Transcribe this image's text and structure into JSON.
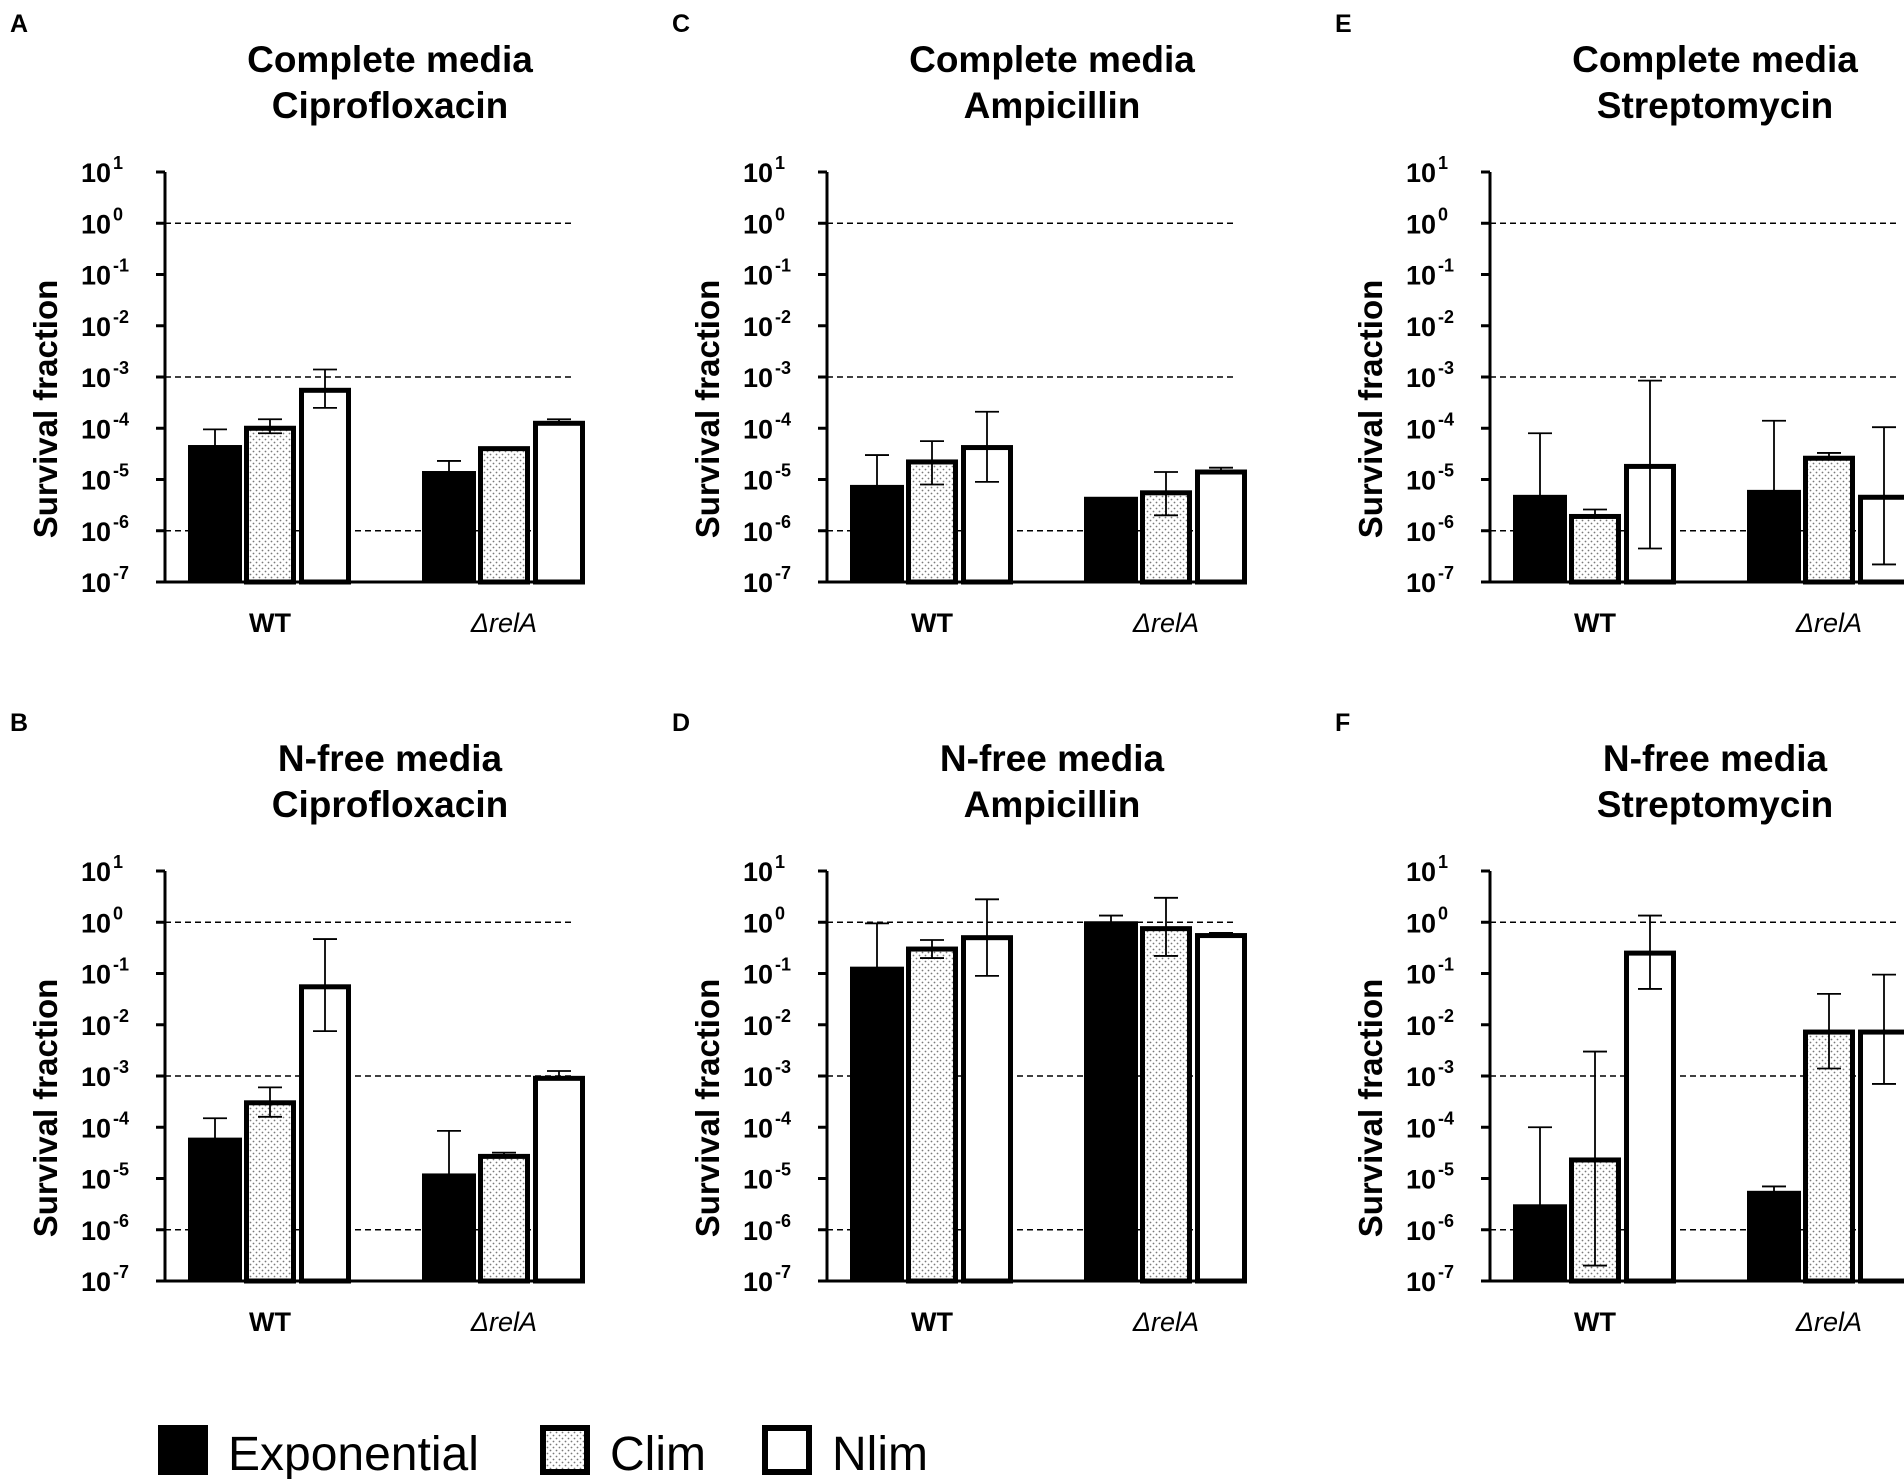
{
  "legend": [
    {
      "key": "exponential",
      "label": "Exponential",
      "style": "solid"
    },
    {
      "key": "clim",
      "label": "Clim",
      "style": "dotted"
    },
    {
      "key": "nlim",
      "label": "Nlim",
      "style": "open"
    }
  ],
  "colors": {
    "black": "#000000",
    "white": "#ffffff",
    "dots": "#7a7a7a"
  },
  "chart_data": [
    {
      "type": "bar",
      "panel": "A",
      "title_lines": [
        "Complete media",
        "Ciprofloxacin"
      ],
      "ylabel": "Survival fraction",
      "yscale": "log",
      "ylim_exp": [
        -7,
        1
      ],
      "yticks_exp": [
        "1",
        "0",
        "-1",
        "-2",
        "-3",
        "-4",
        "-5",
        "-6",
        "-7"
      ],
      "ref_lines": [
        1,
        0.001,
        1e-06
      ],
      "categories": [
        "WT",
        "ΔrelA"
      ],
      "series": [
        {
          "name": "Exponential",
          "values": [
            4.5e-05,
            1.4e-05
          ],
          "err_high": [
            9.5e-05,
            2.3e-05
          ],
          "err_low": [
            null,
            null
          ]
        },
        {
          "name": "Clim",
          "values": [
            0.0001,
            4e-05
          ],
          "err_high": [
            0.00015,
            null
          ],
          "err_low": [
            8e-05,
            null
          ]
        },
        {
          "name": "Nlim",
          "values": [
            0.00055,
            0.000125
          ],
          "err_high": [
            0.0014,
            0.00015
          ],
          "err_low": [
            0.00025,
            null
          ]
        }
      ]
    },
    {
      "type": "bar",
      "panel": "C",
      "title_lines": [
        "Complete media",
        "Ampicillin"
      ],
      "ylabel": "Survival fraction",
      "yscale": "log",
      "ylim_exp": [
        -7,
        1
      ],
      "yticks_exp": [
        "1",
        "0",
        "-1",
        "-2",
        "-3",
        "-4",
        "-5",
        "-6",
        "-7"
      ],
      "ref_lines": [
        1,
        0.001,
        1e-06
      ],
      "categories": [
        "WT",
        "ΔrelA"
      ],
      "series": [
        {
          "name": "Exponential",
          "values": [
            7.5e-06,
            4.4e-06
          ],
          "err_high": [
            3e-05,
            null
          ],
          "err_low": [
            null,
            null
          ]
        },
        {
          "name": "Clim",
          "values": [
            2.2e-05,
            5.5e-06
          ],
          "err_high": [
            5.6e-05,
            1.4e-05
          ],
          "err_low": [
            8e-06,
            2e-06
          ]
        },
        {
          "name": "Nlim",
          "values": [
            4.2e-05,
            1.4e-05
          ],
          "err_high": [
            0.00021,
            1.7e-05
          ],
          "err_low": [
            9e-06,
            null
          ]
        }
      ]
    },
    {
      "type": "bar",
      "panel": "E",
      "title_lines": [
        "Complete media",
        "Streptomycin"
      ],
      "ylabel": "Survival fraction",
      "yscale": "log",
      "ylim_exp": [
        -7,
        1
      ],
      "yticks_exp": [
        "1",
        "0",
        "-1",
        "-2",
        "-3",
        "-4",
        "-5",
        "-6",
        "-7"
      ],
      "ref_lines": [
        1,
        0.001,
        1e-06
      ],
      "categories": [
        "WT",
        "ΔrelA"
      ],
      "series": [
        {
          "name": "Exponential",
          "values": [
            4.8e-06,
            6e-06
          ],
          "err_high": [
            8e-05,
            0.00014
          ],
          "err_low": [
            null,
            null
          ]
        },
        {
          "name": "Clim",
          "values": [
            1.9e-06,
            2.6e-05
          ],
          "err_high": [
            2.6e-06,
            3.3e-05
          ],
          "err_low": [
            null,
            null
          ]
        },
        {
          "name": "Nlim",
          "values": [
            1.8e-05,
            4.5e-06
          ],
          "err_high": [
            0.00085,
            0.000105
          ],
          "err_low": [
            4.5e-07,
            2.2e-07
          ]
        }
      ]
    },
    {
      "type": "bar",
      "panel": "B",
      "title_lines": [
        "N-free media",
        "Ciprofloxacin"
      ],
      "ylabel": "Survival fraction",
      "yscale": "log",
      "ylim_exp": [
        -7,
        1
      ],
      "yticks_exp": [
        "1",
        "0",
        "-1",
        "-2",
        "-3",
        "-4",
        "-5",
        "-6",
        "-7"
      ],
      "ref_lines": [
        1,
        0.001,
        1e-06
      ],
      "categories": [
        "WT",
        "ΔrelA"
      ],
      "series": [
        {
          "name": "Exponential",
          "values": [
            6e-05,
            1.2e-05
          ],
          "err_high": [
            0.00015,
            8.5e-05
          ],
          "err_low": [
            null,
            null
          ]
        },
        {
          "name": "Clim",
          "values": [
            0.0003,
            2.7e-05
          ],
          "err_high": [
            0.0006,
            3.2e-05
          ],
          "err_low": [
            0.00016,
            null
          ]
        },
        {
          "name": "Nlim",
          "values": [
            0.055,
            0.0009
          ],
          "err_high": [
            0.47,
            0.00125
          ],
          "err_low": [
            0.0075,
            null
          ]
        }
      ]
    },
    {
      "type": "bar",
      "panel": "D",
      "title_lines": [
        "N-free media",
        "Ampicillin"
      ],
      "ylabel": "Survival fraction",
      "yscale": "log",
      "ylim_exp": [
        -7,
        1
      ],
      "yticks_exp": [
        "1",
        "0",
        "-1",
        "-2",
        "-3",
        "-4",
        "-5",
        "-6",
        "-7"
      ],
      "ref_lines": [
        1,
        0.001,
        1e-06
      ],
      "categories": [
        "WT",
        "ΔrelA"
      ],
      "series": [
        {
          "name": "Exponential",
          "values": [
            0.13,
            1.0
          ],
          "err_high": [
            0.95,
            1.35
          ],
          "err_low": [
            null,
            null
          ]
        },
        {
          "name": "Clim",
          "values": [
            0.3,
            0.75
          ],
          "err_high": [
            0.45,
            3.0
          ],
          "err_low": [
            0.2,
            0.22
          ]
        },
        {
          "name": "Nlim",
          "values": [
            0.5,
            0.55
          ],
          "err_high": [
            2.8,
            0.62
          ],
          "err_low": [
            0.09,
            null
          ]
        }
      ]
    },
    {
      "type": "bar",
      "panel": "F",
      "title_lines": [
        "N-free media",
        "Streptomycin"
      ],
      "ylabel": "Survival fraction",
      "yscale": "log",
      "ylim_exp": [
        -7,
        1
      ],
      "yticks_exp": [
        "1",
        "0",
        "-1",
        "-2",
        "-3",
        "-4",
        "-5",
        "-6",
        "-7"
      ],
      "ref_lines": [
        1,
        0.001,
        1e-06
      ],
      "categories": [
        "WT",
        "ΔrelA"
      ],
      "series": [
        {
          "name": "Exponential",
          "values": [
            3e-06,
            5.5e-06
          ],
          "err_high": [
            0.0001,
            7e-06
          ],
          "err_low": [
            null,
            null
          ]
        },
        {
          "name": "Clim",
          "values": [
            2.3e-05,
            0.0072
          ],
          "err_high": [
            0.003,
            0.04
          ],
          "err_low": [
            2e-07,
            0.0014
          ]
        },
        {
          "name": "Nlim",
          "values": [
            0.25,
            0.0072
          ],
          "err_high": [
            1.35,
            0.095
          ],
          "err_low": [
            0.05,
            0.0007
          ]
        }
      ]
    }
  ]
}
